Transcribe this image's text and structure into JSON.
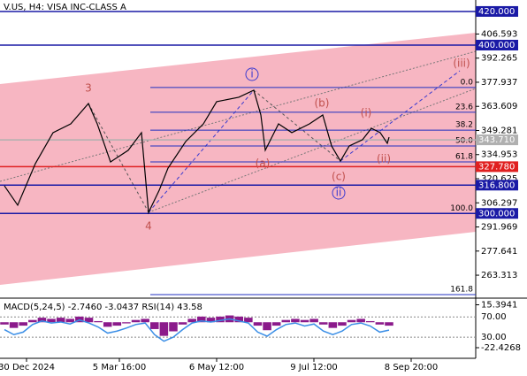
{
  "chart_data": [
    {
      "type": "line",
      "title": "V.US, H4:  VISA INC-CLASS A",
      "color": "#000000",
      "x": [
        5,
        20,
        40,
        60,
        80,
        100,
        110,
        125,
        145,
        160,
        168,
        180,
        190,
        210,
        230,
        245,
        270,
        287,
        295,
        300,
        315,
        330,
        350,
        365,
        375,
        385,
        395,
        410,
        420,
        430,
        438,
        440
      ],
      "values": [
        316.4,
        304.9,
        329.6,
        348.0,
        353.2,
        365.3,
        353.2,
        330.6,
        337.5,
        348.0,
        300.6,
        313.7,
        326.9,
        342.7,
        353.2,
        366.4,
        369.0,
        373.2,
        358.5,
        337.5,
        353.2,
        348.0,
        353.2,
        358.5,
        340.1,
        331.1,
        340.1,
        343.8,
        350.6,
        348.0,
        341.7,
        345.3
      ],
      "xlim": [
        0,
        538
      ],
      "xticks": [
        {
          "value": 30,
          "label": "30 Dec 2024"
        },
        {
          "value": 135,
          "label": "5 Mar 16:00"
        },
        {
          "value": 245,
          "label": "6 May 12:00"
        },
        {
          "value": 355,
          "label": "9 Jul 12:00"
        },
        {
          "value": 465,
          "label": "8 Sep 20:00"
        }
      ],
      "ylim": [
        250.2,
        426.8
      ],
      "yticks": [
        {
          "value": 420,
          "label": "420.000"
        },
        {
          "value": 406.593,
          "label": "406.593"
        },
        {
          "value": 392.265,
          "label": "392.265"
        },
        {
          "value": 377.937,
          "label": "377.937"
        },
        {
          "value": 363.609,
          "label": "363.609"
        },
        {
          "value": 349.281,
          "label": "349.281"
        },
        {
          "value": 334.953,
          "label": "334.953"
        },
        {
          "value": 320.625,
          "label": "320.625"
        },
        {
          "value": 306.297,
          "label": "306.297"
        },
        {
          "value": 291.969,
          "label": "291.969"
        },
        {
          "value": 277.641,
          "label": "277.641"
        },
        {
          "value": 263.313,
          "label": "263.313"
        }
      ],
      "levels": [
        {
          "value": 420,
          "label": "420.000",
          "color": "#1a1aa6"
        },
        {
          "value": 400,
          "label": "400.000",
          "color": "#1a1aa6"
        },
        {
          "value": 343.71,
          "label": "343.710",
          "color": "#b0b0b0"
        },
        {
          "value": 327.78,
          "label": "327.780",
          "color": "#e02020"
        },
        {
          "value": 316.8,
          "label": "316.800",
          "color": "#1a1aa6"
        },
        {
          "value": 300,
          "label": "300.000",
          "color": "#1a1aa6"
        }
      ],
      "fib_levels": [
        {
          "value": 374.8,
          "label": "0.0"
        },
        {
          "value": 360.1,
          "label": "23.6"
        },
        {
          "value": 349.5,
          "label": "38.2"
        },
        {
          "value": 340.1,
          "label": "50.0"
        },
        {
          "value": 330.6,
          "label": "61.8"
        },
        {
          "value": 300,
          "label": "100.0"
        },
        {
          "value": 251.8,
          "label": "161.8"
        }
      ],
      "annotations": [
        {
          "text": "3",
          "color": "#c0504d"
        },
        {
          "text": "4",
          "color": "#c0504d"
        },
        {
          "text": "i",
          "color": "#3a3ad0"
        },
        {
          "text": "(a)",
          "color": "#c0504d"
        },
        {
          "text": "(b)",
          "color": "#c0504d"
        },
        {
          "text": "(c)",
          "color": "#c0504d"
        },
        {
          "text": "ii",
          "color": "#3a3ad0"
        },
        {
          "text": "(i)",
          "color": "#c0504d"
        },
        {
          "text": "(ii)",
          "color": "#c0504d"
        },
        {
          "text": "(iii)",
          "color": "#c0504d"
        }
      ]
    },
    {
      "type": "bar",
      "title": "MACD(5,24,5) -2.7460 -3.0437 RSI(14) 43.58",
      "series": [
        {
          "color": "#8b1a8b",
          "values": [
            -2,
            -5,
            -3,
            2,
            4,
            3,
            4,
            3,
            5,
            4,
            1,
            -4,
            -3,
            -1,
            2,
            3,
            -6,
            -12,
            -8,
            -2,
            3,
            5,
            4,
            5,
            6,
            5,
            4,
            -3,
            -7,
            -3,
            2,
            3,
            2,
            3,
            -2,
            -5,
            -3,
            2,
            3,
            1,
            -2,
            -3
          ]
        },
        {
          "color": "#3a8ee6",
          "axis": "y2",
          "values": [
            45,
            35,
            40,
            55,
            62,
            58,
            60,
            56,
            64,
            58,
            50,
            38,
            42,
            48,
            55,
            58,
            35,
            22,
            30,
            45,
            58,
            62,
            60,
            63,
            66,
            62,
            58,
            40,
            32,
            45,
            55,
            58,
            52,
            56,
            42,
            35,
            42,
            55,
            58,
            52,
            40,
            44
          ]
        }
      ],
      "ylim": [
        -30.99,
        19.68
      ],
      "yticks": [
        15.3941,
        -22.4268
      ],
      "y2lim": [
        -10,
        103.6
      ],
      "y2ticks": [
        {
          "value": 70,
          "label": "70.00"
        },
        {
          "value": 30,
          "label": "30.00"
        }
      ]
    }
  ]
}
